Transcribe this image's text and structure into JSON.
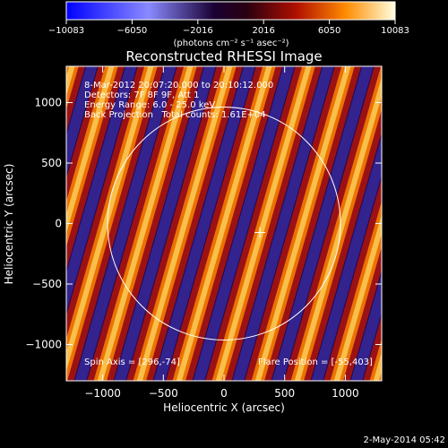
{
  "chart_data": {
    "type": "heatmap",
    "title": "Reconstructed RHESSI Image",
    "xlabel": "Heliocentric X (arcsec)",
    "ylabel": "Heliocentric Y (arcsec)",
    "xlim": [
      -1300,
      1300
    ],
    "ylim": [
      -1300,
      1300
    ],
    "xticks": [
      -1000,
      -500,
      0,
      500,
      1000
    ],
    "yticks": [
      -1000,
      -500,
      0,
      500,
      1000
    ],
    "xtick_labels": [
      "−1000",
      "−500",
      "0",
      "500",
      "1000"
    ],
    "ytick_labels": [
      "−1000",
      "−500",
      "0",
      "500",
      "1000"
    ],
    "colorbar": {
      "ticks": [
        -10083,
        -6050,
        -2016,
        2016,
        6050,
        10083
      ],
      "tick_labels": [
        "−10083",
        "−6050",
        "−2016",
        "2016",
        "6050",
        "10083"
      ],
      "units": "(photons cm⁻² s⁻¹ asec⁻²)",
      "range": [
        -10083,
        10083
      ]
    },
    "annotations": [
      "8-Mar-2012 20:07:20.000 to 20:10:12.000",
      "Detectors: 7F 8F 9F, Att 1",
      "Energy Range: 6.0 - 25.0 keV",
      "Back Projection   Total counts: 1.61E+04"
    ],
    "spin_axis_text": "Spin Axis = [296,-74]",
    "flare_position_text": "Flare Position = [-55,403]",
    "solar_disk": {
      "center": [
        0,
        0
      ],
      "radius": 960
    },
    "marker": {
      "x": 296,
      "y": -74,
      "label": "+"
    }
  },
  "footer_date": "2-May-2014 05:42"
}
